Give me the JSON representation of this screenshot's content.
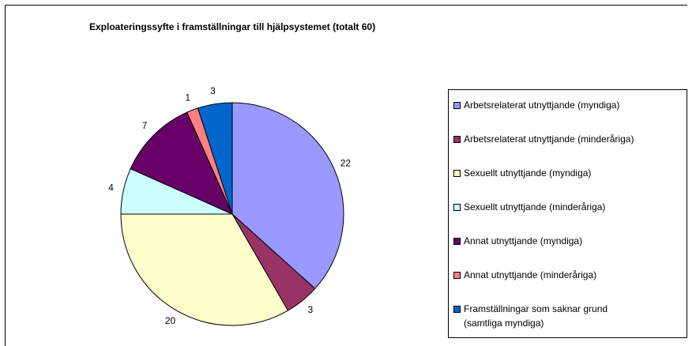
{
  "chart_data": {
    "type": "pie",
    "title": "Exploateringssyfte i framställningar till hjälpsystemet (totalt 60)",
    "categories": [
      "Arbetsrelaterat utnyttjande (myndiga)",
      "Arbetsrelaterat utnyttjande (minderåriga)",
      "Sexuellt utnyttjande (myndiga)",
      "Sexuellt utnyttjande (minderåriga)",
      "Annat utnyttjande (myndiga)",
      "Annat utnyttjande (minderåriga)",
      "Framställningar som saknar grund (samtliga myndiga)"
    ],
    "values": [
      22,
      3,
      20,
      4,
      7,
      1,
      3
    ],
    "colors": [
      "#9999ff",
      "#993366",
      "#ffffcc",
      "#ccffff",
      "#660066",
      "#ff8080",
      "#0066cc"
    ],
    "legend": "right"
  }
}
